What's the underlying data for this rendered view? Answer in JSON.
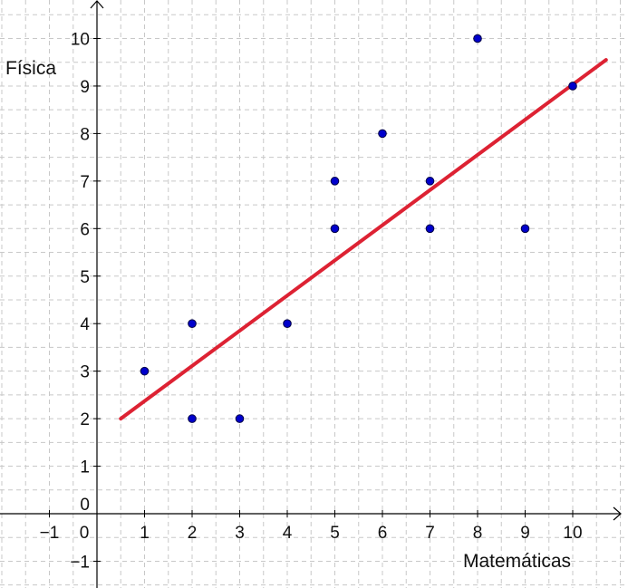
{
  "chart_data": {
    "type": "scatter",
    "xlabel": "Matemáticas",
    "ylabel": "Física",
    "xlim": [
      -2,
      10.9
    ],
    "ylim": [
      -1.2,
      10.8
    ],
    "grid": true,
    "x_ticks": [
      -1,
      0,
      1,
      2,
      3,
      4,
      5,
      6,
      7,
      8,
      9,
      10
    ],
    "y_ticks": [
      -1,
      0,
      1,
      2,
      3,
      4,
      5,
      6,
      7,
      8,
      9,
      10
    ],
    "tick_labels_x": [
      "−1",
      "0",
      "1",
      "2",
      "3",
      "4",
      "5",
      "6",
      "7",
      "8",
      "9",
      "10"
    ],
    "tick_labels_y": [
      "−1",
      "0",
      "1",
      "2",
      "3",
      "4",
      "5",
      "6",
      "7",
      "8",
      "9",
      "10"
    ],
    "points": [
      {
        "x": 1,
        "y": 3
      },
      {
        "x": 2,
        "y": 4
      },
      {
        "x": 2,
        "y": 2
      },
      {
        "x": 3,
        "y": 2
      },
      {
        "x": 4,
        "y": 4
      },
      {
        "x": 5,
        "y": 7
      },
      {
        "x": 5,
        "y": 6
      },
      {
        "x": 6,
        "y": 8
      },
      {
        "x": 7,
        "y": 7
      },
      {
        "x": 7,
        "y": 6
      },
      {
        "x": 8,
        "y": 10
      },
      {
        "x": 9,
        "y": 6
      },
      {
        "x": 10,
        "y": 9
      }
    ],
    "regression_line": {
      "x_start": 0.5,
      "y_start": 2.0,
      "x_end": 10.7,
      "y_end": 9.55
    },
    "colors": {
      "points": "#0000cc",
      "line": "#dd2233",
      "grid": "#c8c8c8",
      "axes": "#000000"
    }
  }
}
